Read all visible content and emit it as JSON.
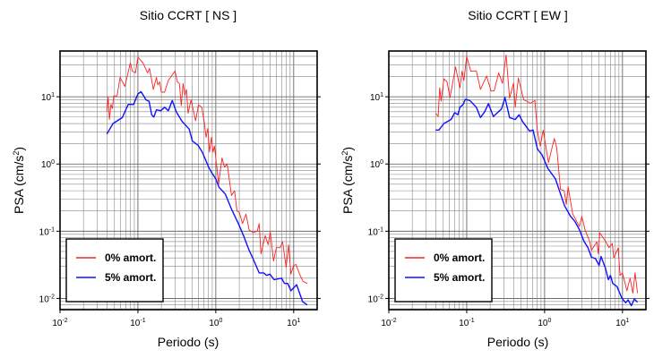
{
  "chart_data": [
    {
      "type": "line",
      "title": "Sitio CCRT [ NS ]",
      "xlabel": "Periodo (s)",
      "ylabel": {
        "text": "PSA (cm/s",
        "sup": "2",
        "end": ")"
      },
      "xscale": "log",
      "yscale": "log",
      "xlim": [
        0.01,
        20
      ],
      "ylim": [
        0.0068,
        48
      ],
      "grid": true,
      "legend": "bottom-left",
      "xticks": [
        {
          "value": 0.01,
          "base": "10",
          "exp": "-2"
        },
        {
          "value": 0.1,
          "base": "10",
          "exp": "-1"
        },
        {
          "value": 1,
          "base": "10",
          "exp": "0"
        },
        {
          "value": 10,
          "base": "10",
          "exp": "1"
        }
      ],
      "yticks": [
        {
          "value": 0.01,
          "base": "10",
          "exp": "-2"
        },
        {
          "value": 0.1,
          "base": "10",
          "exp": "-1"
        },
        {
          "value": 1,
          "base": "10",
          "exp": "0"
        },
        {
          "value": 10,
          "base": "10",
          "exp": "1"
        }
      ],
      "series": [
        {
          "name": "0% amort.",
          "color": "#ff2020",
          "x": [
            0.04,
            0.0415,
            0.043,
            0.045,
            0.047,
            0.049,
            0.054,
            0.059,
            0.068,
            0.08,
            0.085,
            0.093,
            0.1,
            0.116,
            0.133,
            0.141,
            0.158,
            0.173,
            0.18,
            0.19,
            0.2,
            0.22,
            0.246,
            0.3,
            0.32,
            0.34,
            0.36,
            0.38,
            0.4,
            0.42,
            0.44,
            0.48,
            0.51,
            0.55,
            0.6,
            0.66,
            0.71,
            0.75,
            0.79,
            0.83,
            0.88,
            0.92,
            0.96,
            1.09,
            1.2,
            1.29,
            1.4,
            1.59,
            1.74,
            1.87,
            2.0,
            2.2,
            2.44,
            2.67,
            3.0,
            3.4,
            3.6,
            3.8,
            4.3,
            4.7,
            5.0,
            5.5,
            6.0,
            6.7,
            7.2,
            8.0,
            8.6,
            9.2,
            10,
            10.7,
            11.9,
            13.2,
            14.9
          ],
          "y": [
            6.0,
            10,
            4.6,
            7.7,
            6.7,
            10.3,
            10.3,
            19.5,
            14.3,
            32,
            24,
            22.7,
            39,
            32,
            22.7,
            26.5,
            12.9,
            19.5,
            15,
            16.7,
            11.7,
            11.7,
            17.5,
            24.3,
            16.7,
            15.8,
            7.4,
            15.8,
            10.5,
            12.9,
            5.7,
            9,
            6.6,
            4.4,
            7.6,
            7.0,
            4.2,
            2.5,
            3.4,
            1.5,
            2.5,
            1.5,
            1.85,
            0.51,
            1.23,
            0.9,
            1.0,
            0.34,
            0.4,
            0.2,
            0.19,
            0.13,
            0.18,
            0.105,
            0.095,
            0.1,
            0.13,
            0.046,
            0.086,
            0.063,
            0.098,
            0.036,
            0.057,
            0.057,
            0.07,
            0.029,
            0.063,
            0.023,
            0.031,
            0.032,
            0.023,
            0.018,
            0.0167
          ]
        },
        {
          "name": "5% amort.",
          "color": "#1010ff",
          "x": [
            0.04,
            0.048,
            0.063,
            0.075,
            0.088,
            0.1,
            0.11,
            0.127,
            0.139,
            0.15,
            0.16,
            0.173,
            0.197,
            0.22,
            0.246,
            0.276,
            0.31,
            0.37,
            0.455,
            0.5,
            0.59,
            0.67,
            0.81,
            0.88,
            1.0,
            1.1,
            1.32,
            1.6,
            1.95,
            2.3,
            2.66,
            3.0,
            3.6,
            4.1,
            4.5,
            4.95,
            5.6,
            7.0,
            7.6,
            8.4,
            9.2,
            10.9,
            13,
            14.9
          ],
          "y": [
            2.8,
            4.0,
            4.9,
            7.7,
            7.7,
            11,
            11.9,
            9,
            8.6,
            5.4,
            5,
            6.4,
            6.2,
            7,
            6.2,
            8.8,
            6,
            4.3,
            3.3,
            2.2,
            1.9,
            1.5,
            0.9,
            0.75,
            0.6,
            0.45,
            0.36,
            0.21,
            0.13,
            0.083,
            0.053,
            0.039,
            0.024,
            0.024,
            0.022,
            0.023,
            0.019,
            0.02,
            0.0167,
            0.0167,
            0.013,
            0.016,
            0.009,
            0.008
          ]
        }
      ]
    },
    {
      "type": "line",
      "title": "Sitio CCRT [ EW ]",
      "xlabel": "Periodo (s)",
      "ylabel": {
        "text": "PSA (cm/s",
        "sup": "2",
        "end": ")"
      },
      "xscale": "log",
      "yscale": "log",
      "xlim": [
        0.01,
        20
      ],
      "ylim": [
        0.0068,
        48
      ],
      "grid": true,
      "legend": "bottom-left",
      "xticks": [
        {
          "value": 0.01,
          "base": "10",
          "exp": "-2"
        },
        {
          "value": 0.1,
          "base": "10",
          "exp": "-1"
        },
        {
          "value": 1,
          "base": "10",
          "exp": "0"
        },
        {
          "value": 10,
          "base": "10",
          "exp": "1"
        }
      ],
      "yticks": [
        {
          "value": 0.01,
          "base": "10",
          "exp": "-2"
        },
        {
          "value": 0.1,
          "base": "10",
          "exp": "-1"
        },
        {
          "value": 1,
          "base": "10",
          "exp": "0"
        },
        {
          "value": 10,
          "base": "10",
          "exp": "1"
        }
      ],
      "series": [
        {
          "name": "0% amort.",
          "color": "#ff2020",
          "x": [
            0.04,
            0.043,
            0.045,
            0.047,
            0.051,
            0.056,
            0.061,
            0.072,
            0.082,
            0.087,
            0.092,
            0.1,
            0.113,
            0.133,
            0.15,
            0.18,
            0.206,
            0.225,
            0.257,
            0.288,
            0.32,
            0.355,
            0.4,
            0.42,
            0.46,
            0.54,
            0.59,
            0.66,
            0.75,
            0.81,
            0.88,
            0.96,
            1.12,
            1.33,
            1.43,
            1.6,
            1.78,
            1.9,
            2.0,
            2.3,
            2.8,
            3.0,
            3.3,
            3.8,
            4.0,
            4.7,
            4.9,
            5.1,
            6.1,
            6.7,
            7.4,
            7.7,
            8.8,
            9.3,
            10,
            11.4,
            12.5,
            13.6,
            14.5,
            15.6
          ],
          "y": [
            5.7,
            5.1,
            13.6,
            8.6,
            18.5,
            16.7,
            9.7,
            27.8,
            13.6,
            24,
            17.5,
            40,
            24,
            24.3,
            12.9,
            20.4,
            12.2,
            12.2,
            22.7,
            15.8,
            42,
            9.5,
            16.1,
            7.0,
            19,
            9,
            8.6,
            8,
            8.8,
            3.1,
            1.85,
            3.2,
            1.05,
            2.4,
            1.75,
            0.42,
            0.4,
            0.25,
            0.46,
            0.18,
            0.117,
            0.167,
            0.105,
            0.07,
            0.052,
            0.07,
            0.046,
            0.095,
            0.07,
            0.057,
            0.066,
            0.04,
            0.056,
            0.022,
            0.024,
            0.013,
            0.02,
            0.012,
            0.024,
            0.012
          ]
        },
        {
          "name": "5% amort.",
          "color": "#1010ff",
          "x": [
            0.04,
            0.044,
            0.051,
            0.063,
            0.07,
            0.077,
            0.082,
            0.09,
            0.096,
            0.11,
            0.133,
            0.15,
            0.17,
            0.19,
            0.22,
            0.28,
            0.31,
            0.355,
            0.42,
            0.47,
            0.52,
            0.64,
            0.71,
            0.81,
            0.93,
            1.1,
            1.38,
            1.8,
            2.15,
            2.45,
            2.8,
            3.2,
            3.6,
            4.0,
            4.5,
            5.0,
            5.3,
            6.0,
            6.6,
            7.0,
            7.5,
            8.5,
            9.8,
            11.0,
            11.8,
            13.0,
            14.2,
            15.6
          ],
          "y": [
            3.2,
            3.2,
            4.0,
            4.6,
            5.8,
            5.4,
            7,
            7.7,
            9.2,
            8.8,
            7,
            4.9,
            6,
            7.9,
            5.1,
            6.6,
            9.7,
            4.9,
            4.6,
            5.4,
            4.3,
            3.1,
            3.2,
            1.67,
            1.36,
            0.86,
            0.6,
            0.24,
            0.167,
            0.14,
            0.105,
            0.071,
            0.057,
            0.041,
            0.039,
            0.031,
            0.042,
            0.029,
            0.019,
            0.022,
            0.0167,
            0.015,
            0.0101,
            0.0086,
            0.0095,
            0.0078,
            0.0098,
            0.0088
          ]
        }
      ]
    }
  ]
}
